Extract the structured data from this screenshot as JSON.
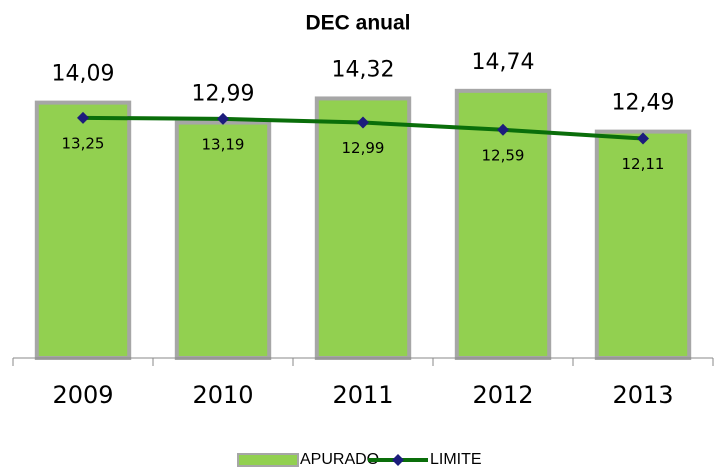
{
  "chart_data": {
    "type": "combo",
    "title": "DEC anual",
    "categories": [
      "2009",
      "2010",
      "2011",
      "2012",
      "2013"
    ],
    "ylim": [
      0,
      16
    ],
    "series": [
      {
        "name": "APURADO",
        "type": "bar",
        "color": "#92d050",
        "values": [
          14.09,
          12.99,
          14.32,
          14.74,
          12.49
        ],
        "value_labels": [
          "14,09",
          "12,99",
          "14,32",
          "14,74",
          "12,49"
        ]
      },
      {
        "name": "LIMITE",
        "type": "line",
        "color": "#0a6e0a",
        "marker_color": "#1c1c7c",
        "values": [
          13.25,
          13.19,
          12.99,
          12.59,
          12.11
        ],
        "value_labels": [
          "13,25",
          "13,19",
          "12,99",
          "12,59",
          "12,11"
        ]
      }
    ],
    "legend": "bottom"
  }
}
